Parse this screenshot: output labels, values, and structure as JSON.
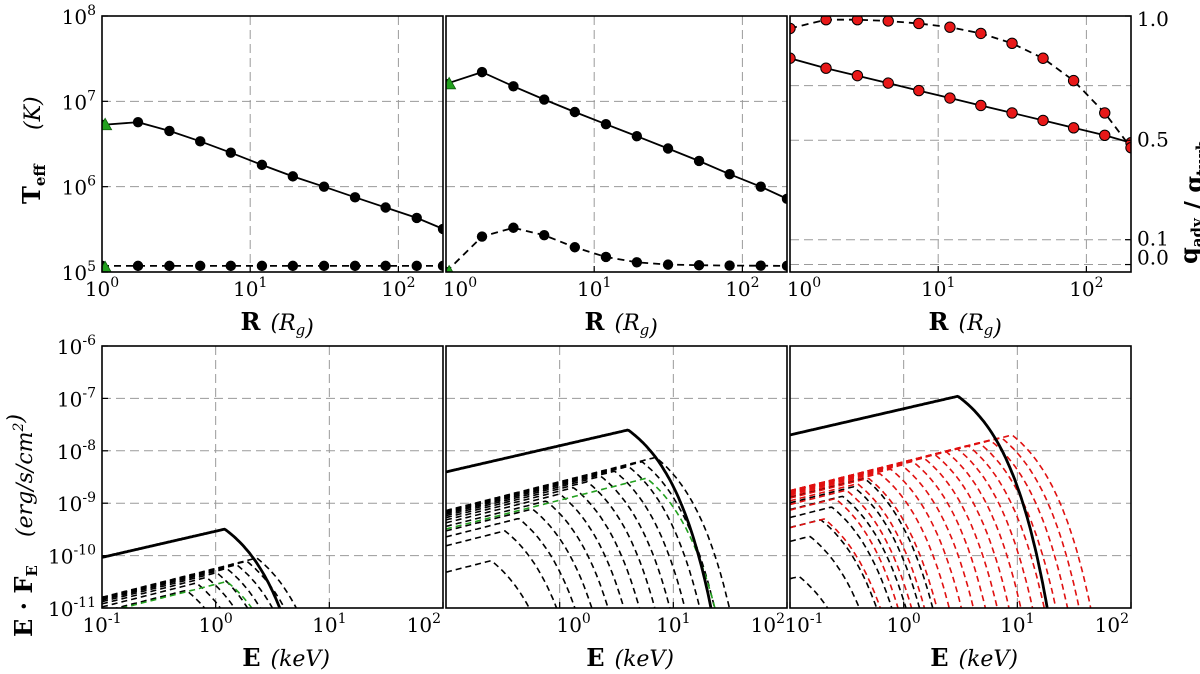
{
  "chart_data": [
    {
      "id": "teff-a",
      "type": "line",
      "xscale": "log",
      "yscale": "log",
      "xlim": [
        1,
        200
      ],
      "ylim": [
        100000,
        100000000
      ],
      "xlabel": "R",
      "xlabel_unit": "(R_g)",
      "ylabel": "T_eff",
      "ylabel_unit": "(K)",
      "grid": true,
      "xticks": [
        {
          "v": 1,
          "label": "10^0"
        },
        {
          "v": 10,
          "label": "10^1"
        },
        {
          "v": 100,
          "label": "10^2"
        }
      ],
      "yticks": [
        {
          "v": 100000,
          "label": "10^5"
        },
        {
          "v": 1000000,
          "label": "10^6"
        },
        {
          "v": 10000000,
          "label": "10^7"
        },
        {
          "v": 100000000,
          "label": "10^8"
        }
      ],
      "series": [
        {
          "name": "Teff solid",
          "style": "solid",
          "color": "#000000",
          "marker": "circle",
          "x": [
            1.0,
            1.75,
            2.85,
            4.6,
            7.4,
            12.0,
            19.4,
            31.5,
            51,
            82,
            133,
            200
          ],
          "y": [
            5300000,
            5700000,
            4500000,
            3400000,
            2500000,
            1800000,
            1320000,
            1000000,
            750000,
            570000,
            430000,
            320000
          ]
        },
        {
          "name": "Teff dashed",
          "style": "dashed",
          "color": "#000000",
          "marker": "circle",
          "x": [
            1.0,
            1.75,
            2.85,
            4.6,
            7.4,
            12.0,
            19.4,
            31.5,
            51,
            82,
            133,
            200
          ],
          "y": [
            118000,
            118000,
            118000,
            118000,
            118000,
            118000,
            118000,
            118000,
            118000,
            118000,
            118000,
            118000
          ]
        },
        {
          "name": "inner edge",
          "style": "none",
          "color": "#22a01e",
          "marker": "triangle",
          "x": [
            1.05,
            1.05
          ],
          "y": [
            5300000,
            112000
          ]
        }
      ]
    },
    {
      "id": "teff-b",
      "type": "line",
      "xscale": "log",
      "yscale": "log",
      "xlim": [
        1,
        200
      ],
      "ylim": [
        100000,
        100000000
      ],
      "xlabel": "R",
      "xlabel_unit": "(R_g)",
      "grid": true,
      "xticks": [
        {
          "v": 1,
          "label": "10^0"
        },
        {
          "v": 10,
          "label": "10^1"
        },
        {
          "v": 100,
          "label": "10^2"
        }
      ],
      "series": [
        {
          "name": "Teff solid",
          "style": "solid",
          "color": "#000000",
          "marker": "circle",
          "x": [
            1.0,
            1.75,
            2.85,
            4.6,
            7.4,
            12.0,
            19.4,
            31.5,
            51,
            82,
            133,
            200
          ],
          "y": [
            16000000,
            22000000,
            15000000,
            10500000,
            7500000,
            5400000,
            3900000,
            2800000,
            2000000,
            1400000,
            1000000,
            720000
          ]
        },
        {
          "name": "Teff dashed",
          "style": "dashed",
          "color": "#000000",
          "marker": "circle",
          "x": [
            1.0,
            1.75,
            2.85,
            4.6,
            7.4,
            12.0,
            19.4,
            31.5,
            51,
            82,
            133,
            200
          ],
          "y": [
            100000,
            260000,
            330000,
            270000,
            195000,
            150000,
            130000,
            122000,
            120000,
            119000,
            118500,
            118000
          ]
        },
        {
          "name": "inner edge",
          "style": "none",
          "color": "#22a01e",
          "marker": "triangle",
          "x": [
            1.05,
            1.05
          ],
          "y": [
            16000000,
            100000
          ]
        }
      ]
    },
    {
      "id": "q-ratio",
      "type": "line",
      "xscale": "log",
      "yscale": "linear",
      "xlim": [
        1,
        200
      ],
      "ylim": [
        -0.03,
        1.0
      ],
      "xlabel": "R",
      "xlabel_unit": "(R_g)",
      "ylabel_right": "q_adv / q_turb",
      "grid": true,
      "xticks": [
        {
          "v": 1,
          "label": "10^0"
        },
        {
          "v": 10,
          "label": "10^1"
        },
        {
          "v": 100,
          "label": "10^2"
        }
      ],
      "yticks_right": [
        {
          "v": 0.0,
          "label": "0.0"
        },
        {
          "v": 0.1,
          "label": "0.1"
        },
        {
          "v": 0.5,
          "label": "0.5"
        },
        {
          "v": 1.0,
          "label": "1.0"
        }
      ],
      "series": [
        {
          "name": "solid",
          "style": "solid",
          "color": "#000000",
          "marker": "circle-red",
          "x": [
            1.0,
            1.75,
            2.85,
            4.6,
            7.4,
            12.0,
            19.4,
            31.5,
            51,
            82,
            133,
            200
          ],
          "y": [
            0.83,
            0.79,
            0.76,
            0.73,
            0.7,
            0.67,
            0.64,
            0.61,
            0.58,
            0.55,
            0.52,
            0.49
          ]
        },
        {
          "name": "dashed",
          "style": "dashed",
          "color": "#000000",
          "marker": "circle-red",
          "x": [
            1.0,
            1.75,
            2.85,
            4.6,
            7.4,
            12.0,
            19.4,
            31.5,
            51,
            82,
            133,
            200
          ],
          "y": [
            0.95,
            0.985,
            0.985,
            0.98,
            0.97,
            0.955,
            0.93,
            0.89,
            0.83,
            0.74,
            0.61,
            0.47
          ]
        }
      ]
    },
    {
      "id": "spectrum-a",
      "type": "line",
      "xscale": "log",
      "yscale": "log",
      "xlim": [
        0.1,
        100
      ],
      "ylim": [
        1e-11,
        1e-06
      ],
      "xlabel": "E",
      "xlabel_unit": "(keV)",
      "ylabel": "E · F_E",
      "ylabel_unit": "(erg/s/cm^2)",
      "grid": true,
      "xticks": [
        {
          "v": 0.1,
          "label": "10^-1"
        },
        {
          "v": 1,
          "label": "10^0"
        },
        {
          "v": 10,
          "label": "10^1"
        },
        {
          "v": 100,
          "label": "10^2"
        }
      ],
      "yticks": [
        {
          "v": 1e-11,
          "label": "10^-11"
        },
        {
          "v": 1e-10,
          "label": "10^-10"
        },
        {
          "v": 1e-09,
          "label": "10^-9"
        },
        {
          "v": 1e-08,
          "label": "10^-8"
        },
        {
          "v": 1e-07,
          "label": "10^-7"
        },
        {
          "v": 1e-06,
          "label": "10^-6"
        }
      ],
      "total": {
        "peak_keV": 1.2,
        "peak_flux": 3.2e-10,
        "cutoff_keV": 3.8
      },
      "components": {
        "count": 9,
        "color": "#000000",
        "peak_keV_min": 0.45,
        "peak_keV_max": 2.3,
        "flux_min": 1e-11,
        "flux_max": 9e-11
      },
      "highlight": {
        "color": "#22a01e",
        "peak_keV": 1.25,
        "peak_flux": 3.2e-11
      }
    },
    {
      "id": "spectrum-b",
      "type": "line",
      "xscale": "log",
      "yscale": "log",
      "xlim": [
        0.1,
        100
      ],
      "ylim": [
        1e-11,
        1e-06
      ],
      "xlabel": "E",
      "xlabel_unit": "(keV)",
      "grid": true,
      "xticks": [
        {
          "v": 1,
          "label": "10^0"
        },
        {
          "v": 10,
          "label": "10^1"
        },
        {
          "v": 100,
          "label": "10^2"
        }
      ],
      "total": {
        "peak_keV": 4.0,
        "peak_flux": 2.5e-08,
        "cutoff_keV": 13.5
      },
      "components": {
        "count": 13,
        "color": "#000000",
        "peak_keV_min": 0.25,
        "peak_keV_max": 7.0,
        "flux_min": 8e-11,
        "flux_max": 7.5e-09
      },
      "highlight": {
        "color": "#22a01e",
        "peak_keV": 5.8,
        "peak_flux": 3e-09
      }
    },
    {
      "id": "spectrum-c",
      "type": "line",
      "xscale": "log",
      "yscale": "log",
      "xlim": [
        0.1,
        100
      ],
      "ylim": [
        1e-11,
        1e-06
      ],
      "xlabel": "E",
      "xlabel_unit": "(keV)",
      "grid": true,
      "xticks": [
        {
          "v": 0.1,
          "label": "10^-1"
        },
        {
          "v": 1,
          "label": "10^0"
        },
        {
          "v": 10,
          "label": "10^1"
        },
        {
          "v": 100,
          "label": "10^2"
        }
      ],
      "total": {
        "peak_keV": 3.0,
        "peak_flux": 1.1e-07,
        "cutoff_keV": 22
      },
      "components": {
        "count": 7,
        "color": "#000000",
        "peak_keV_min": 0.12,
        "peak_keV_max": 0.45,
        "flux_min": 4e-11,
        "flux_max": 3e-09
      },
      "components_extra": {
        "count": 18,
        "color": "#e01010",
        "peak_keV_min": 0.2,
        "peak_keV_max": 9.0,
        "flux_min": 5e-10,
        "flux_max": 2e-08
      }
    }
  ]
}
